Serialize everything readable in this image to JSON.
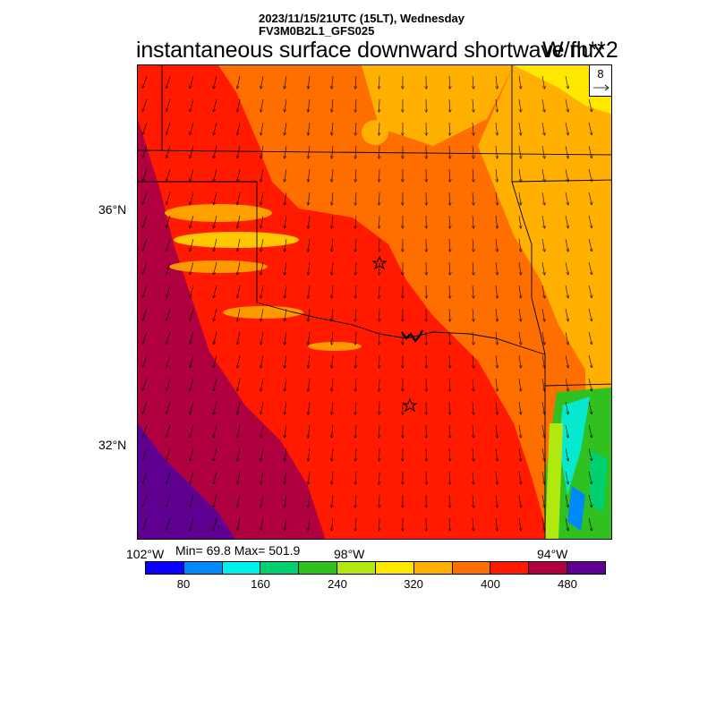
{
  "header": {
    "datetime": "2023/11/15/21UTC (15LT), Wednesday",
    "model": "FV3M0B2L1_GFS025",
    "title": "instantaneous surface downward shortwave flux",
    "units": "W/m**2"
  },
  "map": {
    "lat_labels": [
      "36°N",
      "32°N"
    ],
    "lon_labels": [
      "102°W",
      "98°W",
      "94°W"
    ],
    "markers": [
      "star",
      "star"
    ]
  },
  "stats": {
    "text": "Min= 69.8 Max= 501.9",
    "min": 69.8,
    "max": 501.9
  },
  "colorbar": {
    "colors": [
      "#0a00ff",
      "#0088ff",
      "#00f0ee",
      "#00d070",
      "#30c020",
      "#b0e810",
      "#ffe800",
      "#ffb000",
      "#ff6f00",
      "#ff1a00",
      "#b00040",
      "#600090"
    ],
    "labels": [
      "80",
      "160",
      "240",
      "320",
      "400",
      "480"
    ]
  },
  "vector_reference": {
    "label": "8"
  }
}
